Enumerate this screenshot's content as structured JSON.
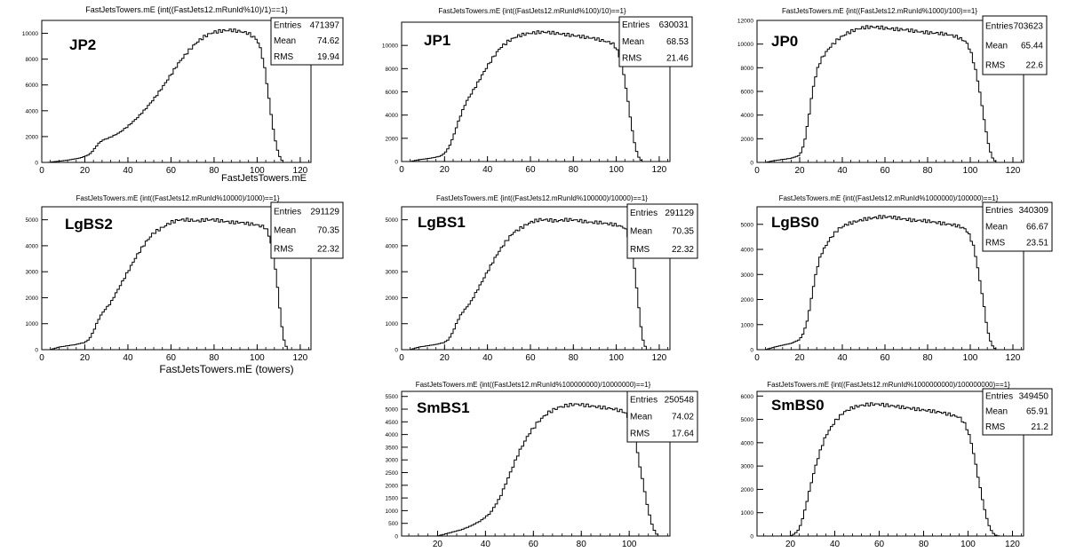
{
  "chart_data": [
    {
      "type": "bar",
      "id": "jp2",
      "title": "FastJetsTowers.mE {int((FastJets12.mRunId%10)/1)==1}",
      "label": "JP2",
      "xlabel": "FastJetsTowers.mE",
      "xlim": [
        0,
        125
      ],
      "ylim": [
        0,
        11000
      ],
      "xticks": [
        0,
        20,
        40,
        60,
        80,
        100,
        120
      ],
      "yticks": [
        0,
        2000,
        4000,
        6000,
        8000,
        10000
      ],
      "stats": {
        "entries_label": "Entries",
        "entries": "471397",
        "mean_label": "Mean",
        "mean": "74.62",
        "rms_label": "RMS",
        "rms": "19.94"
      },
      "curve": [
        [
          0,
          0
        ],
        [
          3,
          0
        ],
        [
          6,
          60
        ],
        [
          10,
          130
        ],
        [
          14,
          230
        ],
        [
          18,
          350
        ],
        [
          22,
          600
        ],
        [
          24,
          950
        ],
        [
          26,
          1400
        ],
        [
          28,
          1700
        ],
        [
          32,
          1950
        ],
        [
          36,
          2300
        ],
        [
          40,
          2800
        ],
        [
          44,
          3400
        ],
        [
          48,
          4100
        ],
        [
          52,
          4900
        ],
        [
          56,
          5800
        ],
        [
          60,
          6800
        ],
        [
          64,
          7800
        ],
        [
          68,
          8600
        ],
        [
          72,
          9300
        ],
        [
          76,
          9800
        ],
        [
          80,
          10100
        ],
        [
          84,
          10200
        ],
        [
          88,
          10250
        ],
        [
          92,
          10150
        ],
        [
          96,
          10000
        ],
        [
          100,
          9500
        ],
        [
          102,
          8600
        ],
        [
          104,
          6800
        ],
        [
          106,
          4300
        ],
        [
          108,
          2000
        ],
        [
          110,
          600
        ],
        [
          112,
          0
        ]
      ]
    },
    {
      "type": "bar",
      "id": "jp1",
      "title": "FastJetsTowers.mE {int((FastJets12.mRunId%100)/10)==1}",
      "label": "JP1",
      "xlabel": "",
      "xlim": [
        0,
        125
      ],
      "ylim": [
        0,
        12000
      ],
      "xticks": [
        0,
        20,
        40,
        60,
        80,
        100,
        120
      ],
      "yticks": [
        0,
        2000,
        4000,
        6000,
        8000,
        10000
      ],
      "stats": {
        "entries_label": "Entries",
        "entries": "630031",
        "mean_label": "Mean",
        "mean": "68.53",
        "rms_label": "RMS",
        "rms": "21.46"
      },
      "curve": [
        [
          0,
          0
        ],
        [
          4,
          0
        ],
        [
          8,
          150
        ],
        [
          14,
          300
        ],
        [
          18,
          450
        ],
        [
          20,
          700
        ],
        [
          22,
          1200
        ],
        [
          24,
          2100
        ],
        [
          26,
          3200
        ],
        [
          28,
          4200
        ],
        [
          30,
          5100
        ],
        [
          34,
          6300
        ],
        [
          38,
          7600
        ],
        [
          42,
          8800
        ],
        [
          46,
          9800
        ],
        [
          50,
          10400
        ],
        [
          54,
          10800
        ],
        [
          58,
          11000
        ],
        [
          62,
          11100
        ],
        [
          66,
          11150
        ],
        [
          70,
          11100
        ],
        [
          74,
          11000
        ],
        [
          78,
          10900
        ],
        [
          82,
          10800
        ],
        [
          86,
          10700
        ],
        [
          90,
          10600
        ],
        [
          94,
          10400
        ],
        [
          98,
          10200
        ],
        [
          100,
          9800
        ],
        [
          102,
          8800
        ],
        [
          104,
          7000
        ],
        [
          106,
          4500
        ],
        [
          108,
          2000
        ],
        [
          110,
          500
        ],
        [
          112,
          0
        ]
      ]
    },
    {
      "type": "bar",
      "id": "jp0",
      "title": "FastJetsTowers.mE {int((FastJets12.mRunId%1000)/100)==1}",
      "label": "JP0",
      "xlabel": "",
      "xlim": [
        0,
        125
      ],
      "ylim": [
        0,
        12000
      ],
      "xticks": [
        0,
        20,
        40,
        60,
        80,
        100,
        120
      ],
      "yticks": [
        0,
        2000,
        4000,
        6000,
        8000,
        10000,
        12000
      ],
      "stats": {
        "entries_label": "Entries",
        "entries": "703623",
        "mean_label": "Mean",
        "mean": "65.44",
        "rms_label": "RMS",
        "rms": "22.6"
      },
      "curve": [
        [
          0,
          0
        ],
        [
          4,
          0
        ],
        [
          8,
          150
        ],
        [
          12,
          250
        ],
        [
          16,
          350
        ],
        [
          20,
          600
        ],
        [
          22,
          1500
        ],
        [
          24,
          3500
        ],
        [
          26,
          6000
        ],
        [
          28,
          7700
        ],
        [
          30,
          8700
        ],
        [
          34,
          9700
        ],
        [
          38,
          10400
        ],
        [
          42,
          10900
        ],
        [
          46,
          11200
        ],
        [
          50,
          11400
        ],
        [
          54,
          11450
        ],
        [
          58,
          11400
        ],
        [
          62,
          11300
        ],
        [
          66,
          11250
        ],
        [
          70,
          11200
        ],
        [
          74,
          11100
        ],
        [
          78,
          11000
        ],
        [
          82,
          10950
        ],
        [
          86,
          10900
        ],
        [
          90,
          10800
        ],
        [
          94,
          10600
        ],
        [
          98,
          10200
        ],
        [
          100,
          9500
        ],
        [
          102,
          8200
        ],
        [
          104,
          6500
        ],
        [
          106,
          4200
        ],
        [
          108,
          2000
        ],
        [
          110,
          500
        ],
        [
          112,
          0
        ]
      ]
    },
    {
      "type": "bar",
      "id": "lgbs2",
      "title": "FastJetsTowers.mE {int((FastJets12.mRunId%10000)/1000)==1}",
      "label": "LgBS2",
      "xlabel": "FastJetsTowers.mE (towers)",
      "xlim": [
        0,
        125
      ],
      "ylim": [
        0,
        5500
      ],
      "xticks": [
        0,
        20,
        40,
        60,
        80,
        100,
        120
      ],
      "yticks": [
        0,
        1000,
        2000,
        3000,
        4000,
        5000
      ],
      "stats": {
        "entries_label": "Entries",
        "entries": "291129",
        "mean_label": "Mean",
        "mean": "70.35",
        "rms_label": "RMS",
        "rms": "22.32"
      },
      "curve": [
        [
          0,
          0
        ],
        [
          4,
          0
        ],
        [
          8,
          100
        ],
        [
          12,
          150
        ],
        [
          16,
          200
        ],
        [
          20,
          280
        ],
        [
          22,
          400
        ],
        [
          24,
          700
        ],
        [
          26,
          1100
        ],
        [
          28,
          1400
        ],
        [
          32,
          1800
        ],
        [
          36,
          2400
        ],
        [
          40,
          3000
        ],
        [
          44,
          3600
        ],
        [
          48,
          4100
        ],
        [
          52,
          4500
        ],
        [
          56,
          4700
        ],
        [
          60,
          4900
        ],
        [
          64,
          5000
        ],
        [
          68,
          5000
        ],
        [
          72,
          4950
        ],
        [
          76,
          5000
        ],
        [
          80,
          5000
        ],
        [
          84,
          4950
        ],
        [
          88,
          4900
        ],
        [
          92,
          4900
        ],
        [
          96,
          4850
        ],
        [
          100,
          4800
        ],
        [
          104,
          4700
        ],
        [
          106,
          4300
        ],
        [
          108,
          3500
        ],
        [
          110,
          2000
        ],
        [
          112,
          500
        ],
        [
          114,
          0
        ]
      ]
    },
    {
      "type": "bar",
      "id": "lgbs1",
      "title": "FastJetsTowers.mE {int((FastJets12.mRunId%100000)/10000)==1}",
      "label": "LgBS1",
      "xlabel": "",
      "xlim": [
        0,
        125
      ],
      "ylim": [
        0,
        5500
      ],
      "xticks": [
        0,
        20,
        40,
        60,
        80,
        100,
        120
      ],
      "yticks": [
        0,
        1000,
        2000,
        3000,
        4000,
        5000
      ],
      "stats": {
        "entries_label": "Entries",
        "entries": "291129",
        "mean_label": "Mean",
        "mean": "70.35",
        "rms_label": "RMS",
        "rms": "22.32"
      },
      "curve": [
        [
          0,
          0
        ],
        [
          4,
          0
        ],
        [
          8,
          100
        ],
        [
          12,
          150
        ],
        [
          16,
          200
        ],
        [
          20,
          280
        ],
        [
          22,
          400
        ],
        [
          24,
          700
        ],
        [
          26,
          1100
        ],
        [
          28,
          1400
        ],
        [
          32,
          1800
        ],
        [
          36,
          2400
        ],
        [
          40,
          3000
        ],
        [
          44,
          3600
        ],
        [
          48,
          4100
        ],
        [
          52,
          4500
        ],
        [
          56,
          4700
        ],
        [
          60,
          4900
        ],
        [
          64,
          5000
        ],
        [
          68,
          5000
        ],
        [
          72,
          4950
        ],
        [
          76,
          5000
        ],
        [
          80,
          5000
        ],
        [
          84,
          4950
        ],
        [
          88,
          4900
        ],
        [
          92,
          4900
        ],
        [
          96,
          4850
        ],
        [
          100,
          4800
        ],
        [
          104,
          4700
        ],
        [
          106,
          4300
        ],
        [
          108,
          3500
        ],
        [
          110,
          2000
        ],
        [
          112,
          500
        ],
        [
          114,
          0
        ]
      ]
    },
    {
      "type": "bar",
      "id": "lgbs0",
      "title": "FastJetsTowers.mE {int((FastJets12.mRunId%1000000)/100000)==1}",
      "label": "LgBS0",
      "xlabel": "",
      "xlim": [
        0,
        125
      ],
      "ylim": [
        0,
        5700
      ],
      "xticks": [
        0,
        20,
        40,
        60,
        80,
        100,
        120
      ],
      "yticks": [
        0,
        1000,
        2000,
        3000,
        4000,
        5000
      ],
      "stats": {
        "entries_label": "Entries",
        "entries": "340309",
        "mean_label": "Mean",
        "mean": "66.67",
        "rms_label": "RMS",
        "rms": "23.51"
      },
      "curve": [
        [
          0,
          0
        ],
        [
          4,
          0
        ],
        [
          8,
          100
        ],
        [
          12,
          180
        ],
        [
          16,
          250
        ],
        [
          20,
          400
        ],
        [
          22,
          700
        ],
        [
          24,
          1300
        ],
        [
          26,
          2300
        ],
        [
          28,
          3200
        ],
        [
          30,
          3800
        ],
        [
          34,
          4400
        ],
        [
          38,
          4800
        ],
        [
          42,
          5000
        ],
        [
          46,
          5100
        ],
        [
          50,
          5200
        ],
        [
          54,
          5250
        ],
        [
          58,
          5300
        ],
        [
          62,
          5300
        ],
        [
          66,
          5250
        ],
        [
          70,
          5200
        ],
        [
          74,
          5150
        ],
        [
          78,
          5150
        ],
        [
          82,
          5100
        ],
        [
          86,
          5050
        ],
        [
          90,
          5000
        ],
        [
          94,
          4950
        ],
        [
          98,
          4800
        ],
        [
          100,
          4500
        ],
        [
          102,
          4000
        ],
        [
          104,
          3000
        ],
        [
          106,
          2000
        ],
        [
          108,
          800
        ],
        [
          110,
          200
        ],
        [
          112,
          0
        ]
      ]
    },
    {
      "type": "bar",
      "id": "smbs1",
      "title": "FastJetsTowers.mE {int((FastJets12.mRunId%100000000)/10000000)==1}",
      "label": "SmBS1",
      "xlabel": "",
      "xlim": [
        5,
        117
      ],
      "ylim": [
        0,
        5700
      ],
      "xticks": [
        20,
        40,
        60,
        80,
        100
      ],
      "yticks": [
        0,
        500,
        1000,
        1500,
        2000,
        2500,
        3000,
        3500,
        4000,
        4500,
        5000,
        5500
      ],
      "stats": {
        "entries_label": "Entries",
        "entries": "250548",
        "mean_label": "Mean",
        "mean": "74.02",
        "rms_label": "RMS",
        "rms": "17.64"
      },
      "curve": [
        [
          5,
          0
        ],
        [
          8,
          0
        ],
        [
          20,
          0
        ],
        [
          22,
          50
        ],
        [
          26,
          150
        ],
        [
          30,
          250
        ],
        [
          34,
          400
        ],
        [
          38,
          600
        ],
        [
          42,
          900
        ],
        [
          46,
          1500
        ],
        [
          50,
          2400
        ],
        [
          54,
          3300
        ],
        [
          58,
          4000
        ],
        [
          62,
          4500
        ],
        [
          66,
          4850
        ],
        [
          70,
          5050
        ],
        [
          74,
          5150
        ],
        [
          78,
          5200
        ],
        [
          82,
          5150
        ],
        [
          86,
          5100
        ],
        [
          90,
          5050
        ],
        [
          94,
          5000
        ],
        [
          98,
          4900
        ],
        [
          100,
          4600
        ],
        [
          102,
          4000
        ],
        [
          104,
          3000
        ],
        [
          106,
          2000
        ],
        [
          108,
          1000
        ],
        [
          110,
          300
        ],
        [
          112,
          0
        ]
      ]
    },
    {
      "type": "bar",
      "id": "smbs0",
      "title": "FastJetsTowers.mE {int((FastJets12.mRunId%1000000000)/100000000)==1}",
      "label": "SmBS0",
      "xlabel": "",
      "xlim": [
        5,
        125
      ],
      "ylim": [
        0,
        6200
      ],
      "xticks": [
        20,
        40,
        60,
        80,
        100,
        120
      ],
      "yticks": [
        0,
        1000,
        2000,
        3000,
        4000,
        5000,
        6000
      ],
      "stats": {
        "entries_label": "Entries",
        "entries": "349450",
        "mean_label": "Mean",
        "mean": "65.91",
        "rms_label": "RMS",
        "rms": "21.2"
      },
      "curve": [
        [
          5,
          0
        ],
        [
          20,
          0
        ],
        [
          22,
          100
        ],
        [
          24,
          300
        ],
        [
          26,
          900
        ],
        [
          28,
          1700
        ],
        [
          30,
          2500
        ],
        [
          32,
          3200
        ],
        [
          34,
          3800
        ],
        [
          36,
          4300
        ],
        [
          40,
          4900
        ],
        [
          44,
          5300
        ],
        [
          48,
          5500
        ],
        [
          52,
          5600
        ],
        [
          56,
          5650
        ],
        [
          60,
          5650
        ],
        [
          64,
          5600
        ],
        [
          68,
          5550
        ],
        [
          72,
          5500
        ],
        [
          76,
          5450
        ],
        [
          80,
          5400
        ],
        [
          84,
          5350
        ],
        [
          88,
          5300
        ],
        [
          92,
          5200
        ],
        [
          96,
          5100
        ],
        [
          98,
          4900
        ],
        [
          100,
          4500
        ],
        [
          102,
          3800
        ],
        [
          104,
          2800
        ],
        [
          106,
          1800
        ],
        [
          108,
          900
        ],
        [
          110,
          300
        ],
        [
          112,
          50
        ],
        [
          114,
          0
        ]
      ]
    }
  ]
}
